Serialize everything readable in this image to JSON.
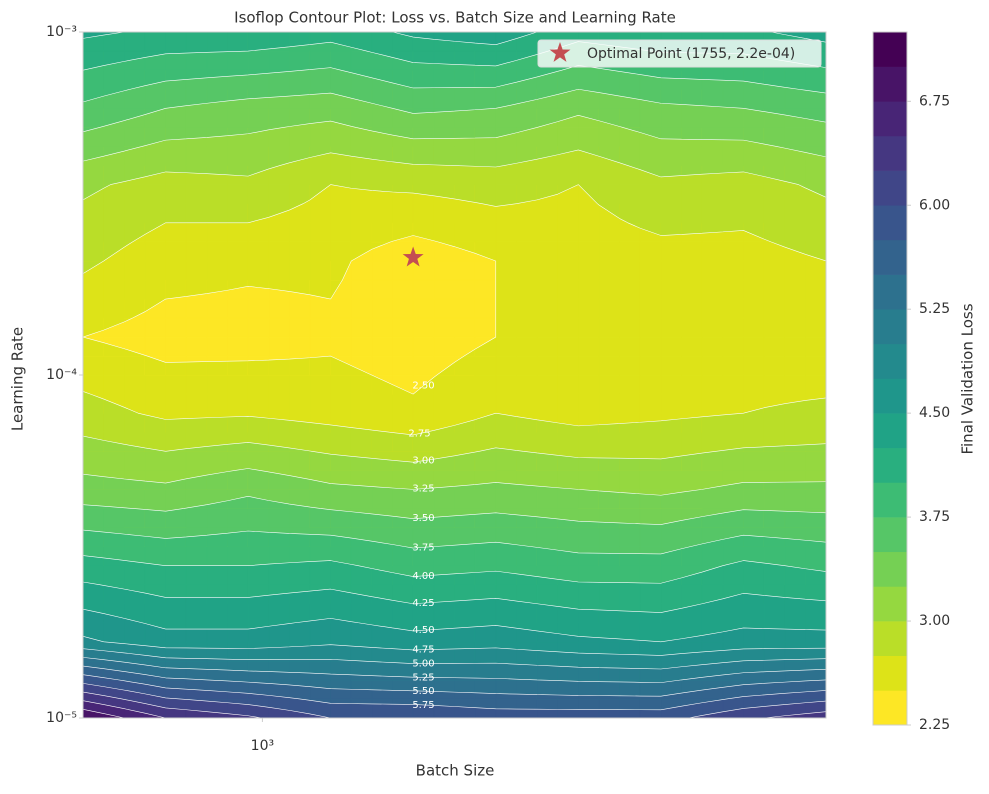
{
  "chart_data": {
    "type": "contour",
    "title": "Isoflop Contour Plot: Loss vs. Batch Size and Learning Rate",
    "x_label": "Batch Size",
    "y_label": "Learning Rate",
    "colorbar_label": "Final Validation Loss",
    "x_scale": "log",
    "y_scale": "log",
    "xlim": [
      512,
      8192
    ],
    "ylim": [
      1e-05,
      0.001
    ],
    "xticks": [
      {
        "value": 1000,
        "label": "10³"
      }
    ],
    "yticks": [
      {
        "value": 1e-05,
        "label": "10⁻⁵"
      },
      {
        "value": 0.0001,
        "label": "10⁻⁴"
      },
      {
        "value": 0.001,
        "label": "10⁻³"
      }
    ],
    "x": [
      512,
      697,
      948,
      1290,
      1755,
      2389,
      3251,
      4424,
      6020,
      8192
    ],
    "y": [
      1e-05,
      1.668e-05,
      2.78e-05,
      4.64e-05,
      7.74e-05,
      0.000129,
      0.000215,
      0.000359,
      0.000599,
      0.001
    ],
    "z": [
      [
        7.0,
        6.5,
        6.3,
        6.0,
        6.0,
        5.9,
        5.9,
        5.9,
        6.2,
        6.4
      ],
      [
        4.8,
        4.6,
        4.6,
        4.7,
        4.6,
        4.65,
        4.55,
        4.5,
        4.6,
        4.6
      ],
      [
        4.1,
        4.0,
        4.0,
        4.05,
        3.9,
        3.95,
        3.85,
        3.85,
        4.05,
        3.95
      ],
      [
        3.35,
        3.3,
        3.45,
        3.3,
        3.25,
        3.3,
        3.25,
        3.2,
        3.3,
        3.3
      ],
      [
        2.85,
        2.7,
        2.72,
        2.65,
        2.55,
        2.75,
        2.65,
        2.7,
        2.75,
        2.8
      ],
      [
        2.5,
        2.4,
        2.4,
        2.45,
        2.35,
        2.5,
        2.6,
        2.6,
        2.6,
        2.55
      ],
      [
        2.8,
        2.6,
        2.55,
        2.55,
        2.35,
        2.5,
        2.6,
        2.65,
        2.65,
        2.75
      ],
      [
        3.05,
        2.9,
        2.95,
        2.75,
        2.8,
        2.85,
        2.75,
        2.95,
        2.9,
        3.05
      ],
      [
        3.7,
        3.5,
        3.4,
        3.35,
        3.55,
        3.5,
        3.3,
        3.45,
        3.5,
        3.6
      ],
      [
        4.3,
        4.2,
        4.2,
        4.1,
        4.3,
        4.4,
        4.1,
        4.2,
        4.2,
        4.35
      ]
    ],
    "levels": [
      {
        "value": 2.25,
        "label": "2.25"
      },
      {
        "value": 2.5,
        "label": "2.50"
      },
      {
        "value": 2.75,
        "label": "2.75"
      },
      {
        "value": 3,
        "label": "3.00"
      },
      {
        "value": 3.25,
        "label": "3.25"
      },
      {
        "value": 3.5,
        "label": "3.50"
      },
      {
        "value": 3.75,
        "label": "3.75"
      },
      {
        "value": 4,
        "label": "4.00"
      },
      {
        "value": 4.25,
        "label": "4.25"
      },
      {
        "value": 4.5,
        "label": "4.50"
      },
      {
        "value": 4.75,
        "label": "4.75"
      },
      {
        "value": 5,
        "label": "5.00"
      },
      {
        "value": 5.25,
        "label": "5.25"
      },
      {
        "value": 5.5,
        "label": "5.50"
      },
      {
        "value": 5.75,
        "label": "5.75"
      },
      {
        "value": 6,
        "label": "6.00"
      },
      {
        "value": 6.25,
        "label": "6.25"
      },
      {
        "value": 6.5,
        "label": "6.50"
      },
      {
        "value": 6.75,
        "label": "6.75"
      },
      {
        "value": 7,
        "label": "7.00"
      },
      {
        "value": 7.25,
        "label": "7.25"
      }
    ],
    "band_colors": [
      "#fde725",
      "#dde318",
      "#bade28",
      "#95d840",
      "#75d054",
      "#56c667",
      "#3dbc74",
      "#29af7f",
      "#20a386",
      "#1f968b",
      "#238a8d",
      "#287d8e",
      "#2d718e",
      "#33638d",
      "#39558c",
      "#404688",
      "#453781",
      "#482576",
      "#481467",
      "#440154"
    ],
    "colorbar_ticks": [
      {
        "value": 2.25,
        "label": "2.25"
      },
      {
        "value": 3,
        "label": "3.00"
      },
      {
        "value": 3.75,
        "label": "3.75"
      },
      {
        "value": 4.5,
        "label": "4.50"
      },
      {
        "value": 5.25,
        "label": "5.25"
      },
      {
        "value": 6,
        "label": "6.00"
      },
      {
        "value": 6.75,
        "label": "6.75"
      }
    ],
    "markers": [
      {
        "name": "Optimal Point (1755, 2.2e-04)",
        "x": 1755,
        "y": 0.00022,
        "color": "#c44e52"
      }
    ],
    "legend_position": "upper right"
  }
}
